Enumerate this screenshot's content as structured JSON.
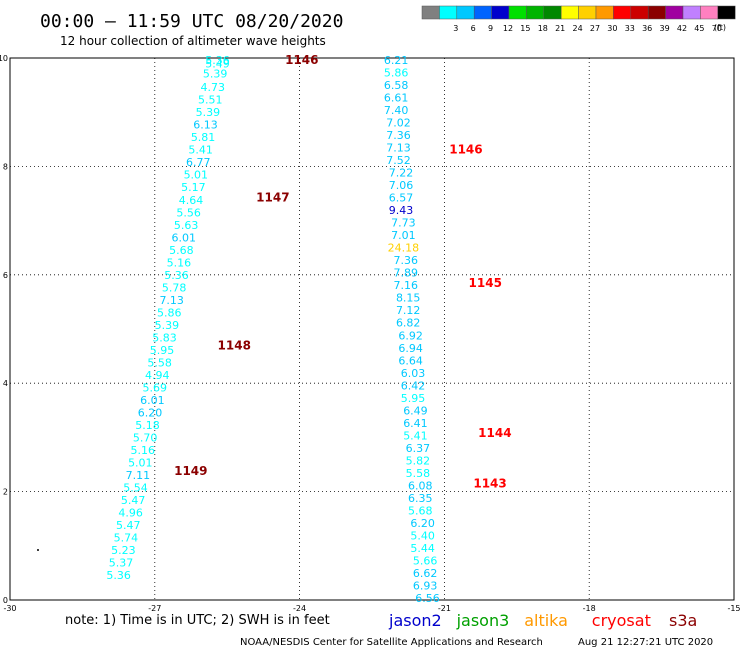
{
  "header": {
    "title": "00:00 – 11:59 UTC 08/20/2020",
    "subtitle": "12 hour collection of altimeter wave heights"
  },
  "colorbar": {
    "unit": "(ft)",
    "swatches": [
      {
        "color": "#808080",
        "label": ""
      },
      {
        "color": "#00ffff",
        "label": "3"
      },
      {
        "color": "#00c8ff",
        "label": "6"
      },
      {
        "color": "#0064ff",
        "label": "9"
      },
      {
        "color": "#0000cc",
        "label": "12"
      },
      {
        "color": "#00e000",
        "label": "15"
      },
      {
        "color": "#00b400",
        "label": "18"
      },
      {
        "color": "#008800",
        "label": "21"
      },
      {
        "color": "#ffff00",
        "label": "24"
      },
      {
        "color": "#ffd000",
        "label": "27"
      },
      {
        "color": "#ff9900",
        "label": "30"
      },
      {
        "color": "#ff0000",
        "label": "33"
      },
      {
        "color": "#cc0000",
        "label": "36"
      },
      {
        "color": "#8b0000",
        "label": "39"
      },
      {
        "color": "#a000a0",
        "label": "42"
      },
      {
        "color": "#c080ff",
        "label": "45"
      },
      {
        "color": "#ff80c0",
        "label": "70"
      },
      {
        "color": "#000000",
        "label": ""
      }
    ]
  },
  "footer": {
    "note": "note: 1) Time is in UTC; 2) SWH is in feet",
    "legend": [
      {
        "name": "jason2",
        "color": "#0000cc"
      },
      {
        "name": "jason3",
        "color": "#00a000"
      },
      {
        "name": "altika",
        "color": "#ff9900"
      },
      {
        "name": "cryosat",
        "color": "#ff0000"
      },
      {
        "name": "s3a",
        "color": "#8b0000"
      }
    ],
    "credit": "NOAA/NESDIS Center for Satellite Applications and Research",
    "timestamp": "Aug 21 12:27:21 UTC 2020"
  },
  "chart_data": {
    "type": "scatter",
    "xlim": [
      -30,
      -15
    ],
    "ylim": [
      0,
      10
    ],
    "xticks": [
      -30,
      -27,
      -24,
      -21,
      -18,
      -15
    ],
    "yticks": [
      0,
      2,
      4,
      6,
      8,
      10
    ],
    "grid": true,
    "labels": [
      {
        "text": "5.36",
        "x": -25.7,
        "y": 9.95,
        "color": "#00ffff"
      },
      {
        "text": "5.49",
        "x": -25.7,
        "y": 9.87,
        "color": "#00ffff"
      },
      {
        "text": "5.39",
        "x": -25.75,
        "y": 9.63,
        "color": "#00ffff"
      },
      {
        "text": "4.73",
        "x": -25.8,
        "y": 9.3,
        "color": "#00ffff"
      },
      {
        "text": "5.51",
        "x": -25.85,
        "y": 9.0,
        "color": "#00ffff"
      },
      {
        "text": "5.39",
        "x": -25.9,
        "y": 8.7,
        "color": "#00ffff"
      },
      {
        "text": "6.13",
        "x": -25.95,
        "y": 8.4,
        "color": "#00c8ff"
      },
      {
        "text": "5.81",
        "x": -26.0,
        "y": 8.1,
        "color": "#00ffff"
      },
      {
        "text": "5.41",
        "x": -26.05,
        "y": 7.8,
        "color": "#00ffff"
      },
      {
        "text": "6.77",
        "x": -26.1,
        "y": 7.5,
        "color": "#00c8ff"
      },
      {
        "text": "5.01",
        "x": -26.15,
        "y": 7.2,
        "color": "#00ffff"
      },
      {
        "text": "5.17",
        "x": -26.2,
        "y": 6.9,
        "color": "#00ffff"
      },
      {
        "text": "4.64",
        "x": -26.25,
        "y": 6.6,
        "color": "#00ffff"
      },
      {
        "text": "5.56",
        "x": -26.3,
        "y": 6.3,
        "color": "#00ffff"
      },
      {
        "text": "5.63",
        "x": -26.35,
        "y": 6.0,
        "color": "#00ffff"
      },
      {
        "text": "6.01",
        "x": -26.4,
        "y": 5.7,
        "color": "#00c8ff"
      },
      {
        "text": "5.68",
        "x": -26.45,
        "y": 5.4,
        "color": "#00ffff"
      },
      {
        "text": "5.16",
        "x": -26.5,
        "y": 5.1,
        "color": "#00ffff"
      },
      {
        "text": "5.36",
        "x": -26.55,
        "y": 4.8,
        "color": "#00ffff"
      },
      {
        "text": "5.78",
        "x": -26.6,
        "y": 4.5,
        "color": "#00ffff"
      },
      {
        "text": "7.13",
        "x": -26.65,
        "y": 4.2,
        "color": "#00c8ff"
      },
      {
        "text": "5.86",
        "x": -26.7,
        "y": 3.9,
        "color": "#00ffff"
      },
      {
        "text": "5.39",
        "x": -26.75,
        "y": 3.6,
        "color": "#00ffff"
      },
      {
        "text": "5.83",
        "x": -26.8,
        "y": 3.3,
        "color": "#00ffff"
      },
      {
        "text": "5.95",
        "x": -26.85,
        "y": 3.0,
        "color": "#00ffff"
      },
      {
        "text": "5.58",
        "x": -26.9,
        "y": 2.7,
        "color": "#00ffff"
      },
      {
        "text": "4.94",
        "x": -26.95,
        "y": 2.4,
        "color": "#00ffff"
      },
      {
        "text": "5.69",
        "x": -27.0,
        "y": 2.1,
        "color": "#00ffff"
      },
      {
        "text": "6.01",
        "x": -27.05,
        "y": 1.8,
        "color": "#00c8ff"
      },
      {
        "text": "6.20",
        "x": -27.1,
        "y": 1.5,
        "color": "#00c8ff"
      },
      {
        "text": "5.18",
        "x": -27.15,
        "y": 1.2,
        "color": "#00ffff"
      },
      {
        "text": "5.70",
        "x": -27.2,
        "y": 0.9,
        "color": "#00ffff"
      },
      {
        "text": "5.16",
        "x": -27.25,
        "y": 0.6,
        "color": "#00ffff"
      },
      {
        "text": "5.01",
        "x": -27.3,
        "y": 0.3,
        "color": "#00ffff"
      },
      {
        "text": "7.11",
        "x": -27.35,
        "y": 0.0,
        "color": "#00c8ff"
      },
      {
        "text": "5.54",
        "x": -27.4,
        "y": -0.3,
        "color": "#00ffff"
      },
      {
        "text": "5.47",
        "x": -27.45,
        "y": -0.6,
        "color": "#00ffff"
      },
      {
        "text": "4.96",
        "x": -27.5,
        "y": -0.9,
        "color": "#00ffff"
      },
      {
        "text": "5.47",
        "x": -27.55,
        "y": -1.2,
        "color": "#00ffff"
      },
      {
        "text": "5.74",
        "x": -27.6,
        "y": -1.5,
        "color": "#00ffff"
      },
      {
        "text": "5.23",
        "x": -27.65,
        "y": -1.8,
        "color": "#00ffff"
      },
      {
        "text": "5.37",
        "x": -27.7,
        "y": -2.1,
        "color": "#00ffff"
      },
      {
        "text": "5.36",
        "x": -27.75,
        "y": -2.4,
        "color": "#00ffff"
      },
      {
        "text": "6.21",
        "x": -22.0,
        "y": 9.95,
        "color": "#00c8ff"
      },
      {
        "text": "5.86",
        "x": -22.0,
        "y": 9.65,
        "color": "#00ffff"
      },
      {
        "text": "6.58",
        "x": -22.0,
        "y": 9.35,
        "color": "#00c8ff"
      },
      {
        "text": "6.61",
        "x": -22.0,
        "y": 9.05,
        "color": "#00c8ff"
      },
      {
        "text": "7.40",
        "x": -22.0,
        "y": 8.75,
        "color": "#00c8ff"
      },
      {
        "text": "7.02",
        "x": -21.95,
        "y": 8.45,
        "color": "#00c8ff"
      },
      {
        "text": "7.36",
        "x": -21.95,
        "y": 8.15,
        "color": "#00c8ff"
      },
      {
        "text": "7.13",
        "x": -21.95,
        "y": 7.85,
        "color": "#00c8ff"
      },
      {
        "text": "7.52",
        "x": -21.95,
        "y": 7.55,
        "color": "#00c8ff"
      },
      {
        "text": "7.22",
        "x": -21.9,
        "y": 7.25,
        "color": "#00c8ff"
      },
      {
        "text": "7.06",
        "x": -21.9,
        "y": 6.95,
        "color": "#00c8ff"
      },
      {
        "text": "6.57",
        "x": -21.9,
        "y": 6.65,
        "color": "#00c8ff"
      },
      {
        "text": "9.43",
        "x": -21.9,
        "y": 6.35,
        "color": "#0000cc"
      },
      {
        "text": "7.73",
        "x": -21.85,
        "y": 6.05,
        "color": "#00c8ff"
      },
      {
        "text": "7.01",
        "x": -21.85,
        "y": 5.75,
        "color": "#00c8ff"
      },
      {
        "text": "24.18",
        "x": -21.85,
        "y": 5.45,
        "color": "#ffd000"
      },
      {
        "text": "7.36",
        "x": -21.8,
        "y": 5.15,
        "color": "#00c8ff"
      },
      {
        "text": "7.89",
        "x": -21.8,
        "y": 4.85,
        "color": "#00c8ff"
      },
      {
        "text": "7.16",
        "x": -21.8,
        "y": 4.55,
        "color": "#00c8ff"
      },
      {
        "text": "8.15",
        "x": -21.75,
        "y": 4.25,
        "color": "#00c8ff"
      },
      {
        "text": "7.12",
        "x": -21.75,
        "y": 3.95,
        "color": "#00c8ff"
      },
      {
        "text": "6.82",
        "x": -21.75,
        "y": 3.65,
        "color": "#00c8ff"
      },
      {
        "text": "6.92",
        "x": -21.7,
        "y": 3.35,
        "color": "#00c8ff"
      },
      {
        "text": "6.94",
        "x": -21.7,
        "y": 3.05,
        "color": "#00c8ff"
      },
      {
        "text": "6.64",
        "x": -21.7,
        "y": 2.75,
        "color": "#00c8ff"
      },
      {
        "text": "6.03",
        "x": -21.65,
        "y": 2.45,
        "color": "#00c8ff"
      },
      {
        "text": "6.42",
        "x": -21.65,
        "y": 2.15,
        "color": "#00c8ff"
      },
      {
        "text": "5.95",
        "x": -21.65,
        "y": 1.85,
        "color": "#00ffff"
      },
      {
        "text": "6.49",
        "x": -21.6,
        "y": 1.55,
        "color": "#00c8ff"
      },
      {
        "text": "6.41",
        "x": -21.6,
        "y": 1.25,
        "color": "#00c8ff"
      },
      {
        "text": "5.41",
        "x": -21.6,
        "y": 0.95,
        "color": "#00ffff"
      },
      {
        "text": "6.37",
        "x": -21.55,
        "y": 0.65,
        "color": "#00c8ff"
      },
      {
        "text": "5.82",
        "x": -21.55,
        "y": 0.35,
        "color": "#00ffff"
      },
      {
        "text": "5.58",
        "x": -21.55,
        "y": 0.05,
        "color": "#00ffff"
      },
      {
        "text": "6.08",
        "x": -21.5,
        "y": -0.25,
        "color": "#00c8ff"
      },
      {
        "text": "6.35",
        "x": -21.5,
        "y": -0.55,
        "color": "#00c8ff"
      },
      {
        "text": "5.68",
        "x": -21.5,
        "y": -0.85,
        "color": "#00ffff"
      },
      {
        "text": "6.20",
        "x": -21.45,
        "y": -1.15,
        "color": "#00c8ff"
      },
      {
        "text": "5.40",
        "x": -21.45,
        "y": -1.45,
        "color": "#00ffff"
      },
      {
        "text": "5.44",
        "x": -21.45,
        "y": -1.75,
        "color": "#00ffff"
      },
      {
        "text": "5.66",
        "x": -21.4,
        "y": -2.05,
        "color": "#00ffff"
      },
      {
        "text": "6.62",
        "x": -21.4,
        "y": -2.35,
        "color": "#00c8ff"
      },
      {
        "text": "6.93",
        "x": -21.4,
        "y": -2.65,
        "color": "#00c8ff"
      },
      {
        "text": "6.56",
        "x": -21.35,
        "y": -2.95,
        "color": "#00c8ff"
      }
    ],
    "passes": [
      {
        "text": "1146",
        "x": -24.3,
        "y": 9.95,
        "color": "#8b0000"
      },
      {
        "text": "1147",
        "x": -24.9,
        "y": 6.65,
        "color": "#8b0000"
      },
      {
        "text": "1148",
        "x": -25.7,
        "y": 3.1,
        "color": "#8b0000"
      },
      {
        "text": "1149",
        "x": -26.6,
        "y": 0.1,
        "color": "#8b0000"
      },
      {
        "text": "1146",
        "x": -20.9,
        "y": 7.8,
        "color": "#ff0000"
      },
      {
        "text": "1145",
        "x": -20.5,
        "y": 4.6,
        "color": "#ff0000"
      },
      {
        "text": "1144",
        "x": -20.3,
        "y": 1.0,
        "color": "#ff0000"
      },
      {
        "text": "1143",
        "x": -20.4,
        "y": -0.2,
        "color": "#ff0000"
      }
    ]
  }
}
